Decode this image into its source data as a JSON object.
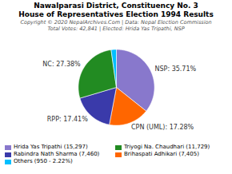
{
  "chart_data": {
    "type": "pie",
    "title": "Nawalparasi District, Constituency No. 3",
    "subtitle": "House of Representatives Election 1994 Results",
    "annotations": [
      "Copyright © 2020 NepalArchives.Com | Data: Nepal Election Commission",
      "Total Votes: 42,841 | Elected: Hrida Yas Tripathi, NSP"
    ],
    "categories": [
      "NSP",
      "CPN (UML)",
      "RPP",
      "NC",
      "Others"
    ],
    "values": [
      35.71,
      17.28,
      17.41,
      27.38,
      2.22
    ],
    "value_labels": [
      "NSP: 35.71%",
      "CPN (UML): 17.28%",
      "RPP: 17.41%",
      "NC: 27.38%",
      null
    ],
    "colors": [
      "#8878cc",
      "#ff6600",
      "#3a3aaa",
      "#228b22",
      "#00bfff"
    ],
    "data_labels": true,
    "legend": "lower left",
    "legend_entries": [
      {
        "label": "Hrida Yas Tripathi (15,297)",
        "color": "#8878cc"
      },
      {
        "label": "Triyogi Na. Chaudhari (11,729)",
        "color": "#228b22"
      },
      {
        "label": "Rabindra Nath Sharma (7,460)",
        "color": "#3a3aaa"
      },
      {
        "label": "Brihaspati Adhikari (7,405)",
        "color": "#ff6600"
      },
      {
        "label": "Others (950 - 2.22%)",
        "color": "#00bfff"
      }
    ]
  }
}
